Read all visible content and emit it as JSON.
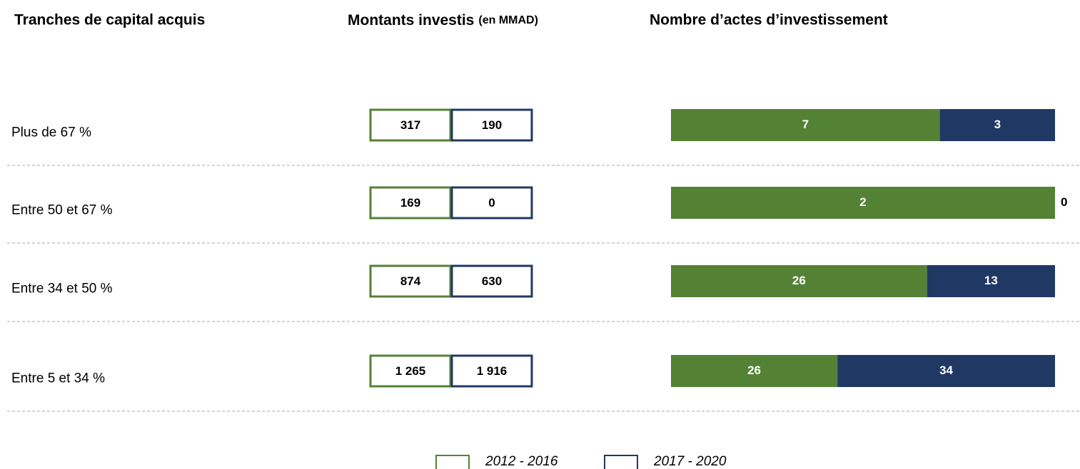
{
  "chart_data": {
    "type": "bar",
    "category_header": "Tranches de capital acquis",
    "amounts_title": "Montants investis",
    "amounts_unit": "(en MMAD)",
    "counts_title": "Nombre d’actes d’investissement",
    "stacking": "percent",
    "categories": [
      "Plus de 67 %",
      "Entre 50 et 67 %",
      "Entre 34 et 50 %",
      "Entre 5 et 34 %"
    ],
    "series": [
      {
        "name": "2012 - 2016",
        "color": "#548235",
        "amounts": [
          317,
          169,
          874,
          1265
        ],
        "amount_labels": [
          "317",
          "169",
          "874",
          "1 265"
        ],
        "counts": [
          7,
          2,
          26,
          26
        ]
      },
      {
        "name": "2017 - 2020",
        "color": "#203864",
        "amounts": [
          190,
          0,
          630,
          1916
        ],
        "amount_labels": [
          "190",
          "0",
          "630",
          "1 916"
        ],
        "counts": [
          3,
          0,
          13,
          34
        ]
      }
    ]
  }
}
